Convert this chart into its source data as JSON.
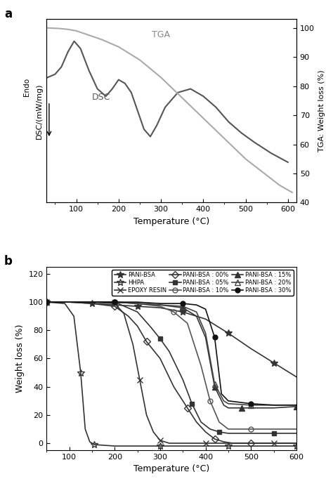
{
  "panel_a": {
    "xlabel": "Temperature (°C)",
    "ylabel_left": "DSC/(mW/mg)",
    "ylabel_right": "TGA: Weight loss (%)",
    "endo_label": "Endo",
    "tga_label": "TGA",
    "dsc_label": "DSC",
    "xlim": [
      30,
      620
    ],
    "ylim_left": [
      0.0,
      1.0
    ],
    "ylim_right": [
      40,
      103
    ],
    "tga_x": [
      30,
      60,
      80,
      100,
      130,
      160,
      200,
      250,
      300,
      350,
      400,
      450,
      500,
      540,
      580,
      610
    ],
    "tga_y": [
      100.0,
      99.8,
      99.5,
      99.0,
      97.5,
      96.0,
      93.5,
      89.0,
      83.0,
      76.0,
      69.0,
      62.0,
      55.0,
      50.5,
      46.0,
      43.5
    ],
    "dsc_x": [
      30,
      50,
      65,
      80,
      95,
      110,
      130,
      150,
      170,
      185,
      200,
      215,
      230,
      245,
      260,
      275,
      290,
      310,
      340,
      370,
      400,
      430,
      460,
      490,
      520,
      560,
      600
    ],
    "dsc_y": [
      0.68,
      0.7,
      0.74,
      0.82,
      0.88,
      0.84,
      0.72,
      0.62,
      0.58,
      0.62,
      0.67,
      0.65,
      0.6,
      0.5,
      0.4,
      0.36,
      0.42,
      0.52,
      0.6,
      0.62,
      0.58,
      0.52,
      0.44,
      0.38,
      0.33,
      0.27,
      0.22
    ],
    "dsc_color": "#555555",
    "tga_color": "#aaaaaa"
  },
  "panel_b": {
    "xlabel": "Temperature (°C)",
    "ylabel": "Weight loss (%)",
    "xlim": [
      50,
      600
    ],
    "ylim": [
      -5,
      125
    ],
    "yticks": [
      0,
      20,
      40,
      60,
      80,
      100,
      120
    ],
    "xticks": [
      100,
      200,
      300,
      400,
      500,
      600
    ],
    "series": [
      {
        "label": "PANI-BSA",
        "marker": "*",
        "fillstyle": "full",
        "color": "#333333",
        "markersize": 7,
        "x": [
          50,
          100,
          150,
          200,
          250,
          300,
          350,
          400,
          450,
          500,
          550,
          600
        ],
        "y": [
          100,
          100,
          99,
          98,
          97,
          96,
          93,
          88,
          78,
          67,
          57,
          47
        ]
      },
      {
        "label": "HHPA",
        "marker": "*",
        "fillstyle": "none",
        "color": "#333333",
        "markersize": 7,
        "x": [
          50,
          90,
          110,
          125,
          135,
          145,
          155,
          200,
          250,
          300,
          350,
          400,
          450,
          500,
          550,
          600
        ],
        "y": [
          100,
          99,
          90,
          50,
          10,
          1,
          -1,
          -2,
          -2,
          -2,
          -2,
          -2,
          -2,
          -2,
          -2,
          -2
        ]
      },
      {
        "label": "EPOXY RESIN",
        "marker": "x",
        "fillstyle": "full",
        "color": "#333333",
        "markersize": 6,
        "x": [
          50,
          100,
          150,
          200,
          220,
          240,
          255,
          270,
          285,
          300,
          320,
          350,
          400,
          450,
          500,
          550,
          600
        ],
        "y": [
          100,
          100,
          100,
          99,
          92,
          70,
          45,
          20,
          8,
          2,
          0,
          0,
          0,
          0,
          0,
          0,
          0
        ]
      },
      {
        "label": "PANI-BSA : 00%",
        "marker": "D",
        "fillstyle": "none",
        "color": "#333333",
        "markersize": 5,
        "x": [
          50,
          100,
          150,
          200,
          230,
          250,
          270,
          300,
          330,
          360,
          380,
          400,
          420,
          440,
          460,
          500,
          550,
          600
        ],
        "y": [
          100,
          100,
          99,
          97,
          90,
          83,
          72,
          60,
          40,
          25,
          15,
          8,
          3,
          1,
          0,
          0,
          0,
          0
        ]
      },
      {
        "label": "PANI-BSA : 05%",
        "marker": "s",
        "fillstyle": "full",
        "color": "#333333",
        "markersize": 5,
        "x": [
          50,
          100,
          150,
          200,
          250,
          280,
          300,
          320,
          350,
          370,
          390,
          410,
          430,
          450,
          500,
          550,
          600
        ],
        "y": [
          100,
          100,
          100,
          100,
          93,
          82,
          74,
          65,
          45,
          28,
          15,
          10,
          8,
          7,
          7,
          7,
          7
        ]
      },
      {
        "label": "PANI-BSA : 10%",
        "marker": "o",
        "fillstyle": "none",
        "color": "#555555",
        "markersize": 5,
        "x": [
          50,
          100,
          150,
          200,
          250,
          300,
          330,
          360,
          390,
          410,
          430,
          450,
          500,
          550,
          600
        ],
        "y": [
          100,
          100,
          100,
          100,
          99,
          97,
          93,
          85,
          55,
          30,
          15,
          10,
          10,
          10,
          10
        ]
      },
      {
        "label": "PANI-BSA : 15%",
        "marker": "^",
        "fillstyle": "full",
        "color": "#333333",
        "markersize": 6,
        "x": [
          50,
          100,
          150,
          200,
          250,
          300,
          350,
          380,
          400,
          420,
          440,
          450,
          480,
          500,
          550,
          600
        ],
        "y": [
          100,
          100,
          100,
          100,
          99,
          98,
          96,
          90,
          75,
          40,
          27,
          25,
          25,
          25,
          25,
          26
        ]
      },
      {
        "label": "PANI-BSA : 20%",
        "marker": "^",
        "fillstyle": "none",
        "color": "#444444",
        "markersize": 6,
        "x": [
          50,
          100,
          150,
          200,
          250,
          300,
          350,
          380,
          400,
          420,
          440,
          450,
          500,
          550,
          600
        ],
        "y": [
          100,
          100,
          100,
          100,
          99,
          98,
          97,
          93,
          78,
          42,
          30,
          28,
          27,
          27,
          27
        ]
      },
      {
        "label": "PANI-BSA : 30%",
        "marker": "o",
        "fillstyle": "full",
        "color": "#111111",
        "markersize": 5,
        "x": [
          50,
          100,
          150,
          200,
          250,
          300,
          350,
          380,
          400,
          420,
          435,
          450,
          500,
          550,
          600
        ],
        "y": [
          100,
          100,
          100,
          100,
          100,
          99,
          99,
          98,
          95,
          75,
          35,
          30,
          28,
          27,
          27
        ]
      }
    ]
  }
}
